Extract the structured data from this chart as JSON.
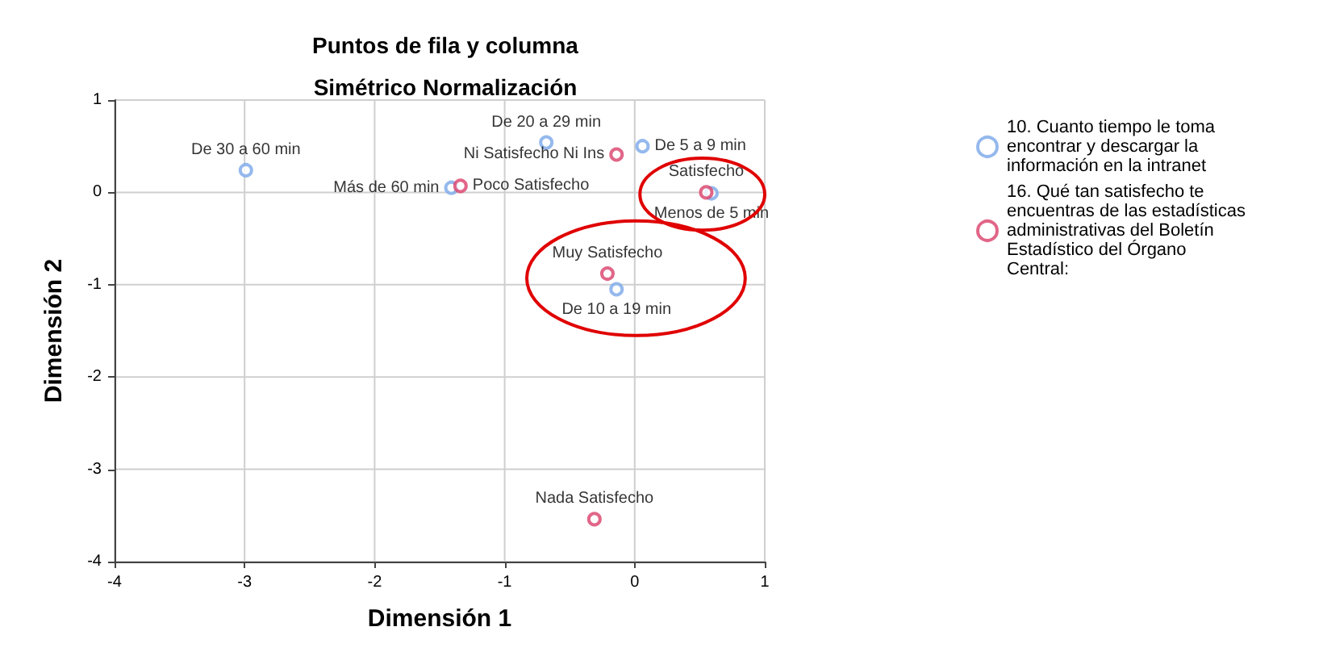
{
  "chart_data": {
    "type": "scatter",
    "title": "Puntos de fila y columna",
    "subtitle": "Simétrico Normalización",
    "xlabel": "Dimensión 1",
    "ylabel": "Dimensión 2",
    "xlim": [
      -4,
      1
    ],
    "xticks": [
      -4,
      -3,
      -2,
      -1,
      0,
      1
    ],
    "ylim": [
      -4,
      1
    ],
    "yticks": [
      -4,
      -3,
      -2,
      -1,
      0,
      1
    ],
    "grid": true,
    "marker": "circle",
    "legend": "right",
    "series": [
      {
        "name": "10. Cuanto tiempo le toma encontrar y descargar la información en la intranet",
        "color": "#7ba7e8",
        "x": [
          -2.99,
          -0.68,
          0.06,
          -1.41,
          0.59,
          -0.14
        ],
        "values": [
          0.24,
          0.54,
          0.5,
          0.05,
          -0.01,
          -1.05
        ],
        "value_labels": [
          "De 30 a 60 min",
          "De 20 a 29 min",
          "De 5 a 9 min",
          "Más de 60 min",
          "Menos de 5 min",
          "De 10 a 19 min"
        ]
      },
      {
        "name": "16. Qué tan satisfecho te encuentras de las estadísticas administrativas del Boletín Estadístico del Órgano Central:",
        "color": "#d9406a",
        "x": [
          -0.14,
          -1.34,
          0.55,
          -0.21,
          -0.31
        ],
        "values": [
          0.41,
          0.07,
          0.0,
          -0.88,
          -3.54
        ],
        "value_labels": [
          "Ni Satisfecho Ni Ins",
          "Poco Satisfecho",
          "Satisfecho",
          "Muy Satisfecho",
          "Nada Satisfecho"
        ]
      }
    ]
  }
}
